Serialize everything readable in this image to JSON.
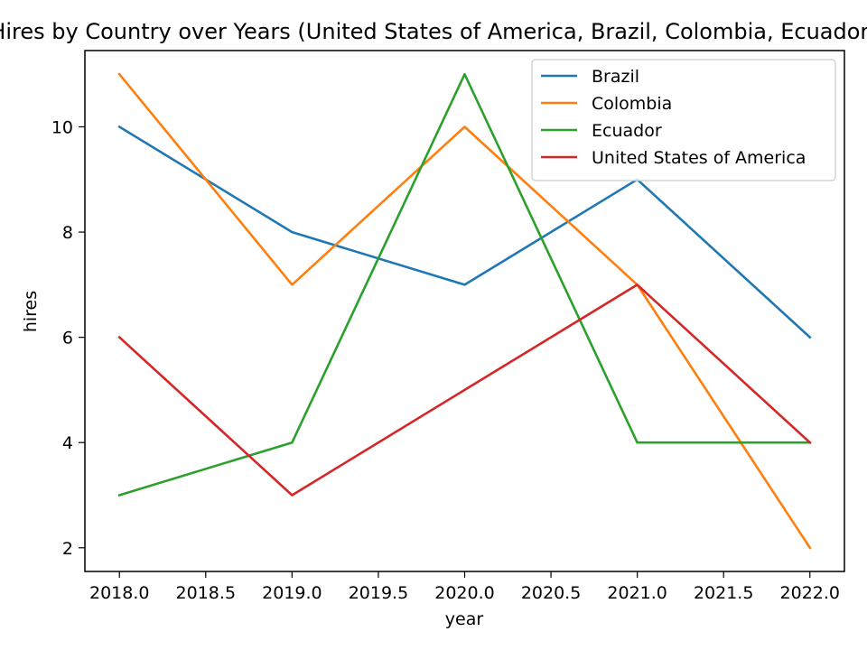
{
  "chart_data": {
    "type": "line",
    "title": "Hires by Country over Years (United States of America, Brazil, Colombia, Ecuador)",
    "xlabel": "year",
    "ylabel": "hires",
    "x": [
      2018,
      2019,
      2020,
      2021,
      2022
    ],
    "xlim": [
      2017.8,
      2022.2
    ],
    "ylim": [
      1.55,
      11.45
    ],
    "x_ticks": [
      "2018.0",
      "2018.5",
      "2019.0",
      "2019.5",
      "2020.0",
      "2020.5",
      "2021.0",
      "2021.5",
      "2022.0"
    ],
    "y_ticks": [
      "2",
      "4",
      "6",
      "8",
      "10"
    ],
    "grid": false,
    "legend_position": "top-right",
    "series": [
      {
        "name": "Brazil",
        "color": "#1f77b4",
        "values": [
          10,
          8,
          7,
          9,
          6
        ]
      },
      {
        "name": "Colombia",
        "color": "#ff7f0e",
        "values": [
          11,
          7,
          10,
          7,
          2
        ]
      },
      {
        "name": "Ecuador",
        "color": "#2ca02c",
        "values": [
          3,
          4,
          11,
          4,
          4
        ]
      },
      {
        "name": "United States of America",
        "color": "#d62728",
        "values": [
          6,
          3,
          5,
          7,
          4
        ]
      }
    ]
  }
}
